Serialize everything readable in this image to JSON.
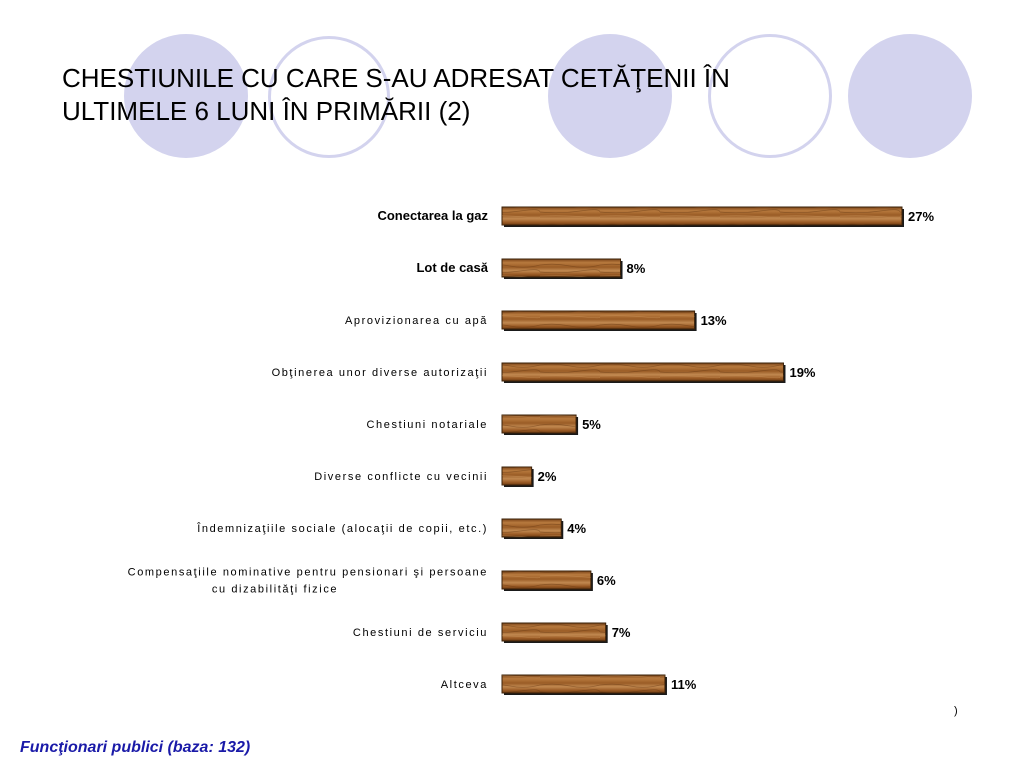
{
  "title": "CHESTIUNILE CU CARE S-AU ADRESAT CETĂŢENII ÎN\nULTIMELE 6 LUNI ÎN PRIMĂRII (2)",
  "footer": "Funcţionari publici (baza: 132)",
  "slide_mark": ")",
  "colors": {
    "decor": "#d3d3ee",
    "bar_wood": "#a86a34",
    "footer_text": "#1a1aa8"
  },
  "chart_data": {
    "type": "bar",
    "orientation": "horizontal",
    "categories": [
      "Conectarea la gaz",
      "Lot de casă",
      "Aprovizionarea cu apă",
      "Obţinerea unor diverse autorizaţii",
      "Chestiuni notariale",
      "Diverse conflicte cu vecinii",
      "Îndemnizaţiile sociale (alocaţii de copii, etc.)",
      "Compensaţiile nominative pentru pensionari şi persoane cu dizabilităţi fizice",
      "Chestiuni de serviciu",
      "Altceva"
    ],
    "category_lines": [
      [
        "Conectarea la gaz"
      ],
      [
        "Lot de casă"
      ],
      [
        "Aprovizionarea cu apă"
      ],
      [
        "Obţinerea unor diverse autorizaţii"
      ],
      [
        "Chestiuni notariale"
      ],
      [
        "Diverse conflicte cu vecinii"
      ],
      [
        "Îndemnizaţiile sociale (alocaţii de copii, etc.)"
      ],
      [
        "Compensaţiile nominative pentru pensionari şi persoane",
        "cu dizabilităţi fizice"
      ],
      [
        "Chestiuni de serviciu"
      ],
      [
        "Altceva"
      ]
    ],
    "bold_categories": [
      0,
      1
    ],
    "values": [
      27,
      8,
      13,
      19,
      5,
      2,
      4,
      6,
      7,
      11
    ],
    "value_labels": [
      "27%",
      "8%",
      "13%",
      "19%",
      "5%",
      "2%",
      "4%",
      "6%",
      "7%",
      "11%"
    ],
    "unit": "%",
    "xlim": [
      0,
      27
    ],
    "grid": false,
    "legend": "none"
  }
}
